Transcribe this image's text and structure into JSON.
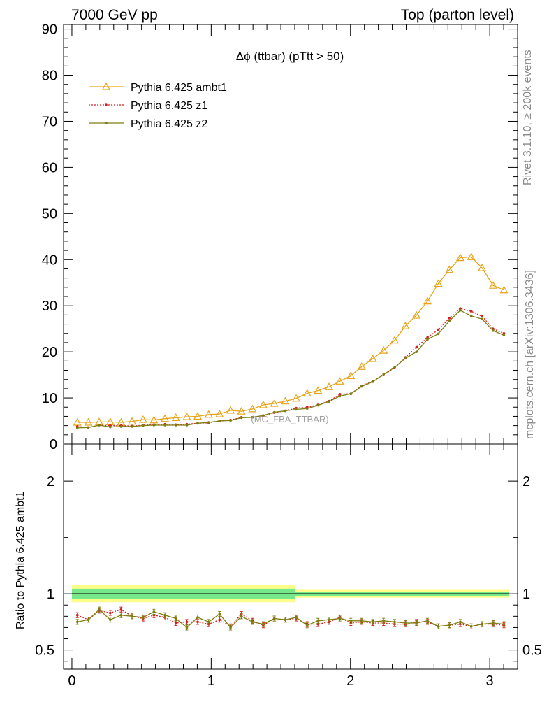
{
  "header": {
    "left": "7000 GeV pp",
    "right": "Top (parton level)"
  },
  "side_labels": {
    "rivet": "Rivet 3.1.10, ≥ 200k events",
    "mcplots": "mcplots.cern.ch [arXiv:1306.3436]"
  },
  "watermark": "(MC_FBA_TTBAR)",
  "ratio_ylabel": "Ratio to Pythia 6.425 ambt1",
  "colors": {
    "ambt1": "#e8a317",
    "z1": "#d62020",
    "z2": "#7d7d10",
    "band_outer": "#fdfd8a",
    "band_inner": "#77e88a"
  },
  "chart_data": [
    {
      "type": "line",
      "title": "Δϕ (ttbar) (pTtt > 50)",
      "xlim": [
        -0.06,
        3.2
      ],
      "ylim": [
        0,
        91
      ],
      "yticks": [
        0,
        10,
        20,
        30,
        40,
        50,
        60,
        70,
        80,
        90
      ],
      "legend_position": "top-left",
      "x": [
        0.039,
        0.118,
        0.196,
        0.275,
        0.353,
        0.432,
        0.511,
        0.589,
        0.668,
        0.746,
        0.825,
        0.903,
        0.982,
        1.06,
        1.139,
        1.217,
        1.296,
        1.374,
        1.453,
        1.532,
        1.61,
        1.689,
        1.767,
        1.846,
        1.924,
        2.003,
        2.081,
        2.16,
        2.238,
        2.317,
        2.395,
        2.474,
        2.553,
        2.631,
        2.71,
        2.788,
        2.867,
        2.945,
        3.024,
        3.102
      ],
      "series": [
        {
          "name": "Pythia 6.425 ambt1",
          "values": [
            4.7,
            4.7,
            4.8,
            4.8,
            4.7,
            4.9,
            5.3,
            5.2,
            5.5,
            5.7,
            5.9,
            6.0,
            6.4,
            6.5,
            7.3,
            7.1,
            7.6,
            8.5,
            8.8,
            9.3,
            9.9,
            11.0,
            11.6,
            12.4,
            13.6,
            14.8,
            16.8,
            18.5,
            20.3,
            22.5,
            25.6,
            27.9,
            31.0,
            34.8,
            37.8,
            40.4,
            40.6,
            38.2,
            34.4,
            33.4
          ]
        },
        {
          "name": "Pythia 6.425 z1",
          "values": [
            3.8,
            3.6,
            4.1,
            4.0,
            4.0,
            3.9,
            4.1,
            4.2,
            4.3,
            4.2,
            4.3,
            4.5,
            4.6,
            5.0,
            5.2,
            5.8,
            5.8,
            6.1,
            6.8,
            7.2,
            7.8,
            8.0,
            8.5,
            9.3,
            10.8,
            10.9,
            12.6,
            13.6,
            15.0,
            16.5,
            18.8,
            21.0,
            23.1,
            24.8,
            27.3,
            29.4,
            28.8,
            27.7,
            25.0,
            24.0
          ]
        },
        {
          "name": "Pythia 6.425 z2",
          "values": [
            3.5,
            3.6,
            4.1,
            3.7,
            3.8,
            3.8,
            4.0,
            4.1,
            4.1,
            4.1,
            4.1,
            4.5,
            4.7,
            5.0,
            5.1,
            5.7,
            5.8,
            6.2,
            6.9,
            7.2,
            7.5,
            7.7,
            8.4,
            9.2,
            10.4,
            10.9,
            12.5,
            13.5,
            15.1,
            16.6,
            18.6,
            20.0,
            22.7,
            23.9,
            26.7,
            29.0,
            27.8,
            27.1,
            24.6,
            23.6
          ]
        }
      ]
    },
    {
      "type": "line",
      "ylabel": "Ratio to Pythia 6.425 ambt1",
      "xlim": [
        -0.06,
        3.2
      ],
      "ylim": [
        0.33,
        2.33
      ],
      "yticks": [
        0.5,
        1,
        2
      ],
      "xticks": [
        0,
        1,
        2,
        3
      ],
      "x": [
        0.039,
        0.118,
        0.196,
        0.275,
        0.353,
        0.432,
        0.511,
        0.589,
        0.668,
        0.746,
        0.825,
        0.903,
        0.982,
        1.06,
        1.139,
        1.217,
        1.296,
        1.374,
        1.453,
        1.532,
        1.61,
        1.689,
        1.767,
        1.846,
        1.924,
        2.003,
        2.081,
        2.16,
        2.238,
        2.317,
        2.395,
        2.474,
        2.553,
        2.631,
        2.71,
        2.788,
        2.867,
        2.945,
        3.024,
        3.102
      ],
      "reference_line": 1,
      "series": [
        {
          "name": "Pythia 6.425 z1",
          "values": [
            0.81,
            0.77,
            0.85,
            0.83,
            0.86,
            0.8,
            0.78,
            0.81,
            0.79,
            0.74,
            0.75,
            0.75,
            0.73,
            0.77,
            0.71,
            0.82,
            0.76,
            0.72,
            0.78,
            0.77,
            0.78,
            0.73,
            0.73,
            0.75,
            0.79,
            0.74,
            0.75,
            0.74,
            0.74,
            0.73,
            0.73,
            0.75,
            0.75,
            0.71,
            0.72,
            0.73,
            0.71,
            0.73,
            0.73,
            0.72
          ]
        },
        {
          "name": "Pythia 6.425 z2",
          "values": [
            0.75,
            0.77,
            0.86,
            0.77,
            0.81,
            0.8,
            0.79,
            0.84,
            0.81,
            0.78,
            0.7,
            0.79,
            0.75,
            0.82,
            0.7,
            0.8,
            0.75,
            0.73,
            0.78,
            0.77,
            0.79,
            0.72,
            0.76,
            0.77,
            0.78,
            0.76,
            0.76,
            0.75,
            0.76,
            0.75,
            0.74,
            0.74,
            0.76,
            0.71,
            0.72,
            0.75,
            0.71,
            0.73,
            0.74,
            0.73
          ]
        }
      ]
    }
  ]
}
